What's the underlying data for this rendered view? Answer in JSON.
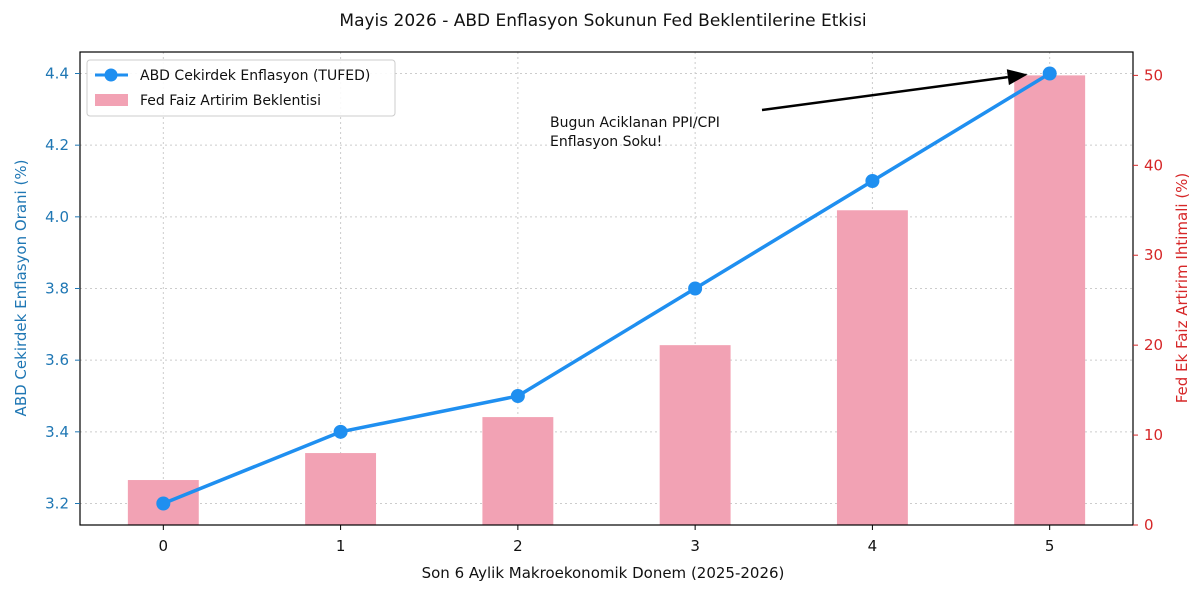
{
  "colors": {
    "line": "#1f8ff0",
    "bar": "#f2a2b4",
    "left_axis": "#1f77b4",
    "right_axis": "#d62728",
    "arrow": "#000000"
  },
  "chart_data": {
    "type": "bar+line",
    "title": "Mayis 2026 - ABD Enflasyon Sokunun Fed Beklentilerine Etkisi",
    "xlabel": "Son 6 Aylik Makroekonomik Donem (2025-2026)",
    "ylabel_left": "ABD Cekirdek Enflasyon Orani (%)",
    "ylabel_right": "Fed Ek Faiz Artirim Ihtimali (%)",
    "categories": [
      "0",
      "1",
      "2",
      "3",
      "4",
      "5"
    ],
    "x": [
      0,
      1,
      2,
      3,
      4,
      5
    ],
    "xlim": [
      -0.47,
      5.47
    ],
    "ylim_left": [
      3.14,
      4.46
    ],
    "ylim_right": [
      0,
      52.6
    ],
    "yticks_left": [
      "3.2",
      "3.4",
      "3.6",
      "3.8",
      "4.0",
      "4.2",
      "4.4"
    ],
    "yticks_right": [
      "0",
      "10",
      "20",
      "30",
      "40",
      "50"
    ],
    "grid": true,
    "legend_position": "top-left",
    "series": [
      {
        "name": "ABD Cekirdek Enflasyon (TUFED)",
        "kind": "line",
        "axis": "left",
        "values": [
          3.2,
          3.4,
          3.5,
          3.8,
          4.1,
          4.4
        ]
      },
      {
        "name": "Fed Faiz Artirim Beklentisi",
        "kind": "bar",
        "axis": "right",
        "values": [
          5,
          8,
          12,
          20,
          35,
          50
        ]
      }
    ],
    "annotation": {
      "text_lines": [
        "Bugun Aciklanan PPI/CPI",
        "Enflasyon Soku!"
      ],
      "arrow_to_x": 5,
      "arrow_to_y": 4.4
    }
  }
}
